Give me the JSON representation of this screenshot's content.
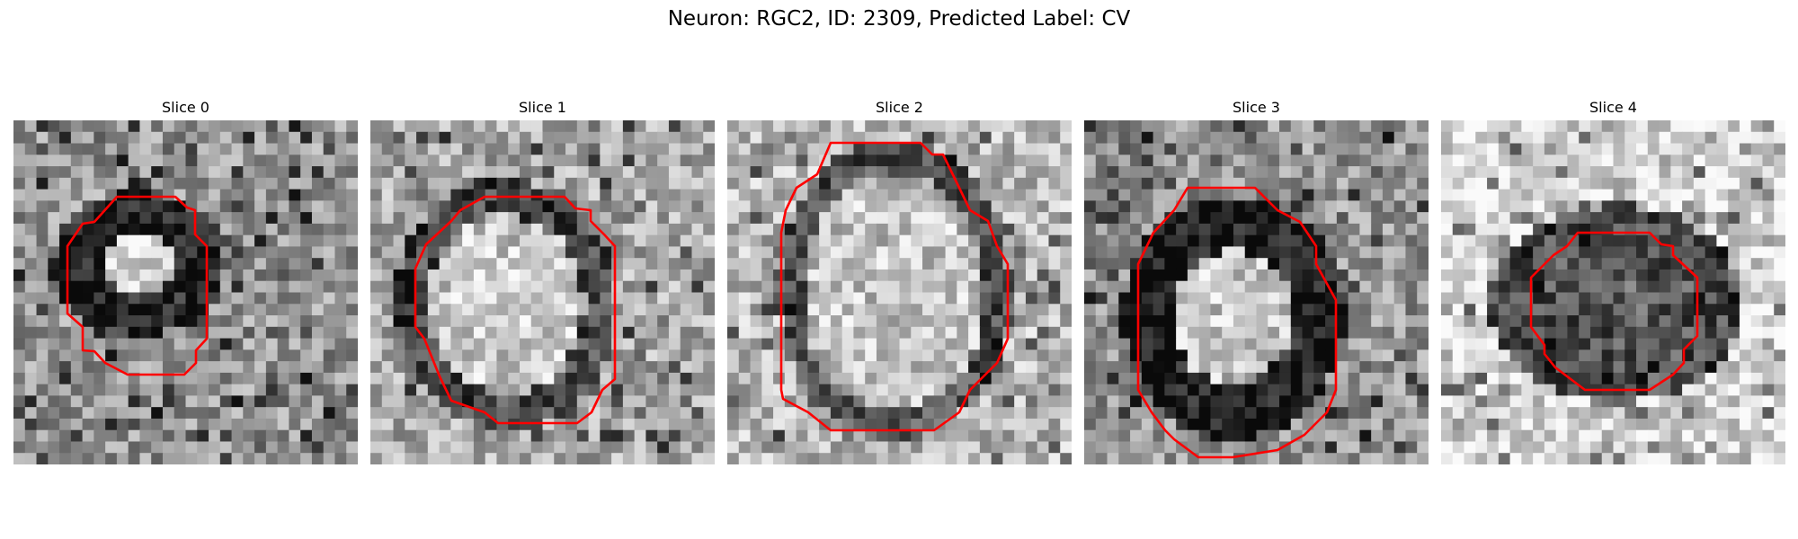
{
  "figure": {
    "title": "Neuron: RGC2, ID: 2309, Predicted Label: CV"
  },
  "panels": [
    {
      "title": "Slice 0",
      "mask_color": "#ff0000",
      "pattern": "small dark-ringed bright blob, dark band below"
    },
    {
      "title": "Slice 1",
      "mask_color": "#ff0000",
      "pattern": "large bright oval with dark rim"
    },
    {
      "title": "Slice 2",
      "mask_color": "#ff0000",
      "pattern": "large bright round cell with thin dark rim"
    },
    {
      "title": "Slice 3",
      "mask_color": "#ff0000",
      "pattern": "bright oval enclosed by thick dark ring"
    },
    {
      "title": "Slice 4",
      "mask_color": "#ff0000",
      "pattern": "dark mottled core on light background"
    }
  ]
}
